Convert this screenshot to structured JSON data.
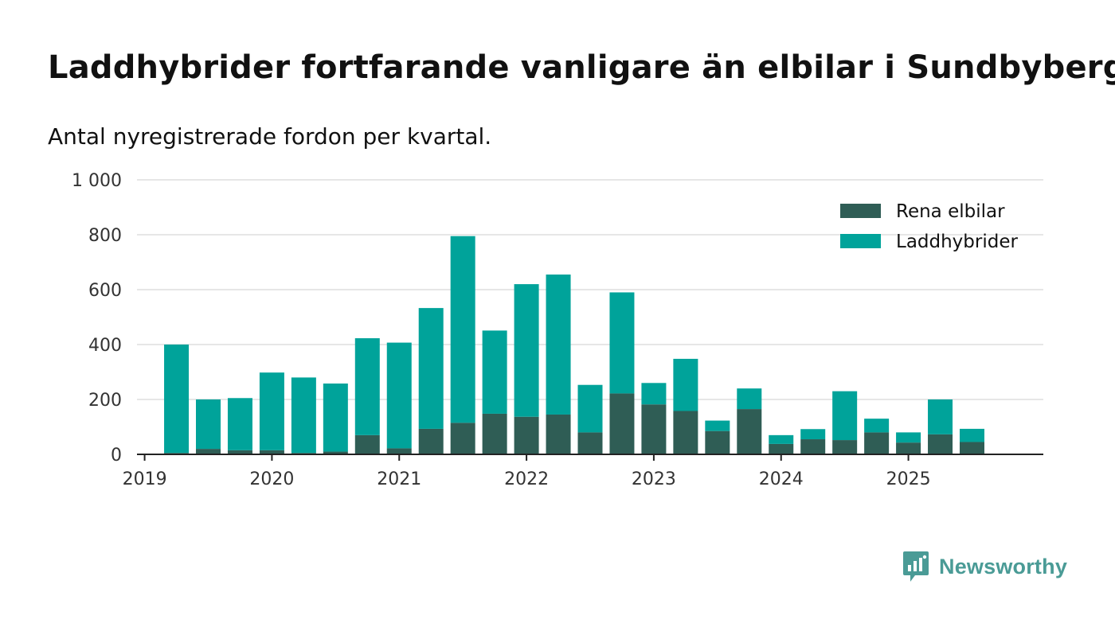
{
  "chart_data": {
    "type": "bar",
    "stacked": true,
    "title": "Laddhybrider fortfarande vanligare än elbilar i Sundbyberg",
    "subtitle": "Antal nyregistrerade fordon per kvartal.",
    "xlabel": "",
    "ylabel": "",
    "ylim": [
      0,
      1000
    ],
    "yticks": [
      0,
      200,
      400,
      600,
      800,
      1000
    ],
    "ytick_labels": [
      "0",
      "200",
      "400",
      "600",
      "800",
      "1 000"
    ],
    "xticks": [
      2019,
      2020,
      2021,
      2022,
      2023,
      2024,
      2025
    ],
    "xtick_labels": [
      "2019",
      "2020",
      "2021",
      "2022",
      "2023",
      "2024",
      "2025"
    ],
    "x": [
      2019.25,
      2019.5,
      2019.75,
      2020.0,
      2020.25,
      2020.5,
      2020.75,
      2021.0,
      2021.25,
      2021.5,
      2021.75,
      2022.0,
      2022.25,
      2022.5,
      2022.75,
      2023.0,
      2023.25,
      2023.5,
      2023.75,
      2024.0,
      2024.25,
      2024.5,
      2024.75,
      2025.0,
      2025.25,
      2025.5
    ],
    "xlim": [
      2018.94,
      2026.06
    ],
    "legend_position": "top-right",
    "series": [
      {
        "name": "Rena elbilar",
        "color": "#2f5d55",
        "values": [
          5,
          20,
          15,
          15,
          5,
          10,
          70,
          22,
          93,
          115,
          148,
          137,
          145,
          80,
          222,
          182,
          158,
          85,
          165,
          38,
          55,
          52,
          80,
          43,
          73,
          45
        ]
      },
      {
        "name": "Laddhybrider",
        "color": "#00a39a",
        "values": [
          395,
          180,
          190,
          283,
          275,
          248,
          353,
          385,
          440,
          680,
          303,
          483,
          510,
          173,
          368,
          78,
          190,
          38,
          75,
          32,
          37,
          178,
          50,
          37,
          127,
          48
        ]
      }
    ],
    "legend": [
      "Rena elbilar",
      "Laddhybrider"
    ]
  },
  "branding": {
    "logo_text": "Newsworthy",
    "logo_icon": "bar-chart-bubble-icon",
    "logo_color": "#4a9b96"
  },
  "colors": {
    "grid": "#dddddd",
    "axis": "#222222"
  }
}
